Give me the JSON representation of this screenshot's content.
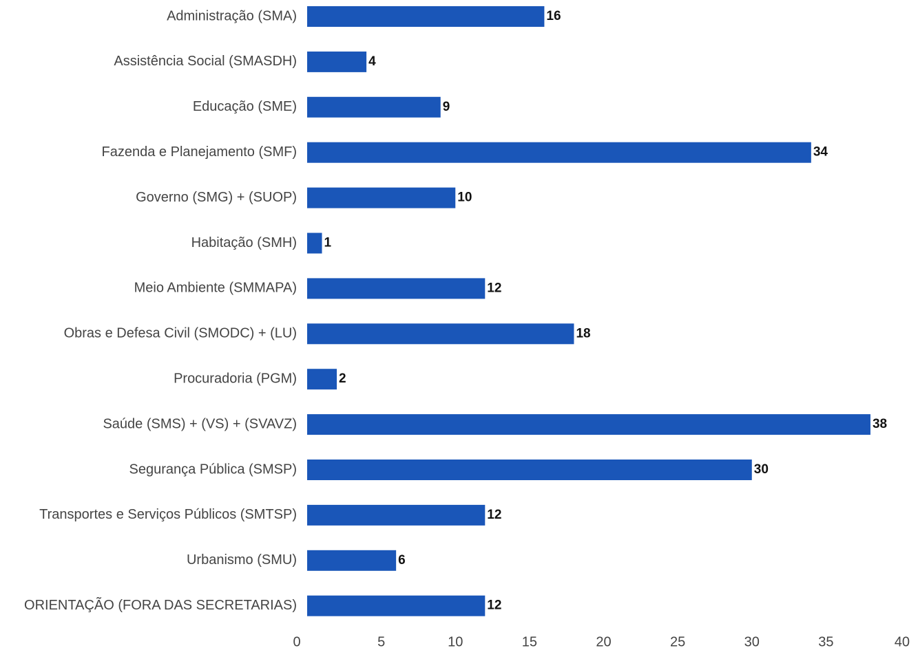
{
  "chart_data": {
    "type": "bar",
    "orientation": "horizontal",
    "title": "",
    "xlabel": "",
    "ylabel": "",
    "categories": [
      "Administração (SMA)",
      "Assistência Social (SMASDH)",
      "Educação (SME)",
      "Fazenda e Planejamento (SMF)",
      "Governo (SMG) + (SUOP)",
      "Habitação (SMH)",
      "Meio Ambiente (SMMAPA)",
      "Obras e Defesa Civil (SMODC) + (LU)",
      "Procuradoria (PGM)",
      "Saúde (SMS) + (VS) + (SVAVZ)",
      "Segurança Pública (SMSP)",
      "Transportes e Serviços Públicos (SMTSP)",
      "Urbanismo (SMU)",
      "ORIENTAÇÃO (FORA DAS SECRETARIAS)"
    ],
    "values": [
      16,
      4,
      9,
      34,
      10,
      1,
      12,
      18,
      2,
      38,
      30,
      12,
      6,
      12
    ],
    "data_labels": [
      "16",
      "4",
      "9",
      "34",
      "10",
      "1",
      "12",
      "18",
      "2",
      "38",
      "30",
      "12",
      "6",
      "12"
    ],
    "xlim": [
      0,
      40
    ],
    "x_ticks": [
      "0",
      "5",
      "10",
      "15",
      "20",
      "25",
      "30",
      "35",
      "40"
    ],
    "grid": false,
    "legend": "none",
    "bar_color": "#1a56b8"
  }
}
